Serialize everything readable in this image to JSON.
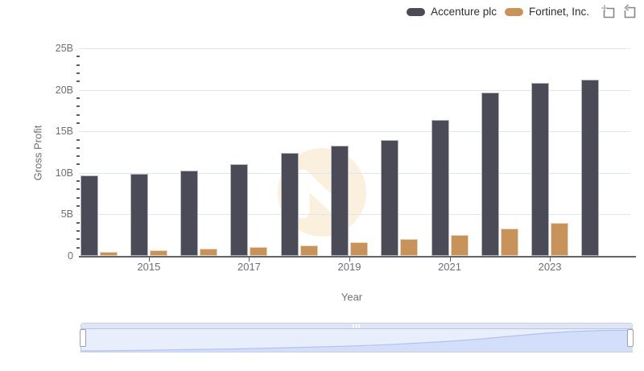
{
  "chart_data": {
    "type": "bar",
    "title": "",
    "unit": "USD billions",
    "categories": [
      "2014",
      "2015",
      "2016",
      "2017",
      "2018",
      "2019",
      "2020",
      "2021",
      "2022",
      "2023",
      "2024"
    ],
    "series": [
      {
        "name": "Accenture plc",
        "color": "#4a4b57",
        "values": [
          9.7,
          9.9,
          10.3,
          11.0,
          12.4,
          13.3,
          14.0,
          16.4,
          19.7,
          20.8,
          21.2
        ]
      },
      {
        "name": "Fortinet, Inc.",
        "color": "#c8935a",
        "values": [
          0.5,
          0.7,
          0.9,
          1.1,
          1.3,
          1.6,
          2.0,
          2.5,
          3.3,
          4.0,
          null
        ]
      }
    ],
    "ylabel": "Gross Profit",
    "xlabel": "Year",
    "ylim": [
      0,
      25
    ],
    "y_major_step": 5,
    "y_minor_step": 1,
    "y_tick_labels": [
      "0",
      "5B",
      "10B",
      "15B",
      "20B",
      "25B"
    ],
    "x_labeled_categories": [
      "2015",
      "2017",
      "2019",
      "2021",
      "2023"
    ],
    "grid": true,
    "legend_position": "top-right"
  },
  "legend_tools": [
    {
      "name": "zoom-selection",
      "title": "Zoom to selection"
    },
    {
      "name": "reset-zoom",
      "title": "Reset zoom"
    }
  ],
  "watermark": {
    "name": "n-logo",
    "circle_color": "#fbf0dd",
    "glyph_color": "#ffffff"
  },
  "navigator": {
    "selected_range": "full",
    "heights": [
      0.05,
      0.06,
      0.08,
      0.1,
      0.12,
      0.14,
      0.17,
      0.2,
      0.24,
      0.28,
      0.33,
      0.4,
      0.48,
      0.58,
      0.7,
      0.82,
      0.91,
      0.96,
      0.97
    ],
    "track_color": "#e9eefc",
    "strip_color": "#dfe5f4",
    "area_fill": "#d2defa",
    "area_line": "#b2c2ee"
  },
  "colors": {
    "gridline": "#dfe6ee",
    "axis_line": "#63636b",
    "tick_label": "#6e6e75"
  }
}
